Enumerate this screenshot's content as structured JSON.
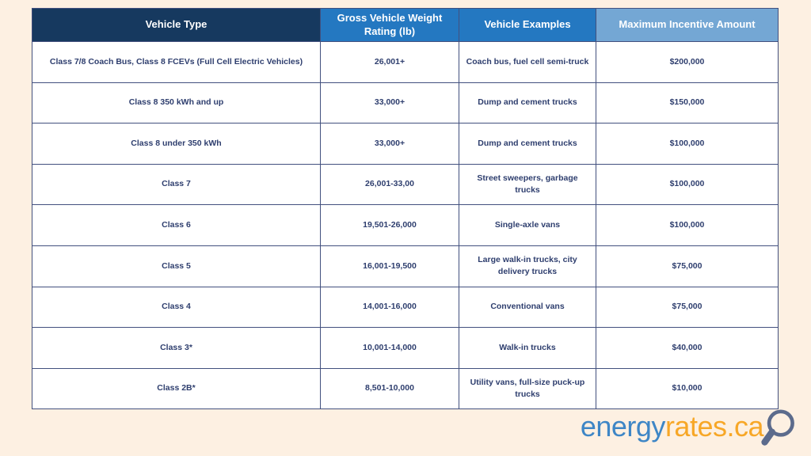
{
  "table": {
    "headers": [
      {
        "label": "Vehicle Type"
      },
      {
        "label": "Gross Vehicle Weight Rating (lb)"
      },
      {
        "label": "Vehicle Examples"
      },
      {
        "label": "Maximum Incentive Amount"
      }
    ],
    "rows": [
      [
        "Class 7/8 Coach Bus, Class 8 FCEVs (Full Cell Electric Vehicles)",
        "26,001+",
        "Coach bus, fuel cell semi-truck",
        "$200,000"
      ],
      [
        "Class 8 350 kWh and up",
        "33,000+",
        "Dump and cement trucks",
        "$150,000"
      ],
      [
        "Class 8 under 350 kWh",
        "33,000+",
        "Dump and cement trucks",
        "$100,000"
      ],
      [
        "Class 7",
        "26,001-33,00",
        "Street sweepers, garbage trucks",
        "$100,000"
      ],
      [
        "Class 6",
        "19,501-26,000",
        "Single-axle vans",
        "$100,000"
      ],
      [
        "Class 5",
        "16,001-19,500",
        "Large walk-in trucks, city delivery trucks",
        "$75,000"
      ],
      [
        "Class 4",
        "14,001-16,000",
        "Conventional vans",
        "$75,000"
      ],
      [
        "Class 3*",
        "10,001-14,000",
        "Walk-in trucks",
        "$40,000"
      ],
      [
        "Class 2B*",
        "8,501-10,000",
        "Utility vans, full-size puck-up trucks",
        "$10,000"
      ]
    ]
  },
  "logo": {
    "part1": "energy",
    "part2": "rates.ca",
    "magnifier_icon": "magnifier"
  },
  "colors": {
    "page_background": "#fdf0e2",
    "header_dark_navy": "#16395f",
    "header_blue": "#2478c1",
    "header_light_blue": "#74a7d4",
    "cell_text_navy": "#2e3e6e",
    "border_navy": "#42507e",
    "logo_blue": "#3e86c6",
    "logo_orange": "#f7a727",
    "logo_magnifier_gray": "#5c6b8c"
  }
}
